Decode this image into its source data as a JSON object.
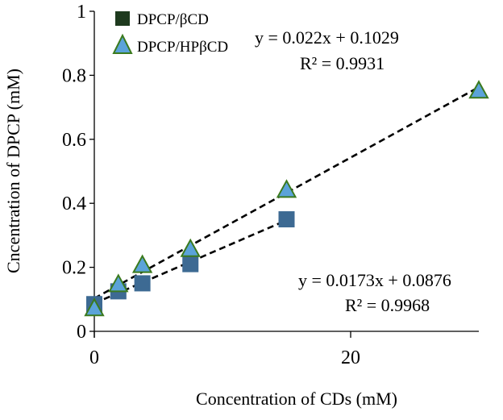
{
  "chart_data": {
    "type": "scatter",
    "title": "",
    "xlabel": "Concentration of CDs (mM)",
    "ylabel": "Cncentration of DPCP (mM)",
    "xlim": [
      0,
      30
    ],
    "ylim": [
      0,
      1
    ],
    "x_ticks": [
      0,
      20
    ],
    "y_ticks": [
      0,
      0.2,
      0.4,
      0.6,
      0.8,
      1
    ],
    "y_tick_labels": [
      "0",
      "0.2",
      "0.4",
      "0.6",
      "0.8",
      "1"
    ],
    "x_tick_labels": [
      "0",
      "20"
    ],
    "grid": false,
    "legend_position": "top-left",
    "series": [
      {
        "name": "DPCP/βCD",
        "marker": "square",
        "color": "#3d6a93",
        "legend_color": "#1e3a1e",
        "points": [
          {
            "x": 0,
            "y": 0.085
          },
          {
            "x": 1.875,
            "y": 0.125
          },
          {
            "x": 3.75,
            "y": 0.15
          },
          {
            "x": 7.5,
            "y": 0.21
          },
          {
            "x": 15,
            "y": 0.35
          }
        ],
        "trendline": {
          "slope": 0.0173,
          "intercept": 0.0876,
          "x_range": [
            0,
            15
          ]
        },
        "equation": "y = 0.0173x + 0.0876",
        "r_squared": "R² = 0.9968"
      },
      {
        "name": "DPCP/HPβCD",
        "marker": "triangle",
        "color": "#5ba3d9",
        "edge_color": "#3b7a1e",
        "points": [
          {
            "x": 0,
            "y": 0.07
          },
          {
            "x": 1.875,
            "y": 0.145
          },
          {
            "x": 3.75,
            "y": 0.205
          },
          {
            "x": 7.5,
            "y": 0.255
          },
          {
            "x": 15,
            "y": 0.44
          },
          {
            "x": 30,
            "y": 0.75
          }
        ],
        "trendline": {
          "slope": 0.022,
          "intercept": 0.1029,
          "x_range": [
            0,
            30
          ]
        },
        "equation": "y = 0.022x + 0.1029",
        "r_squared": "R² = 0.9931"
      }
    ]
  }
}
